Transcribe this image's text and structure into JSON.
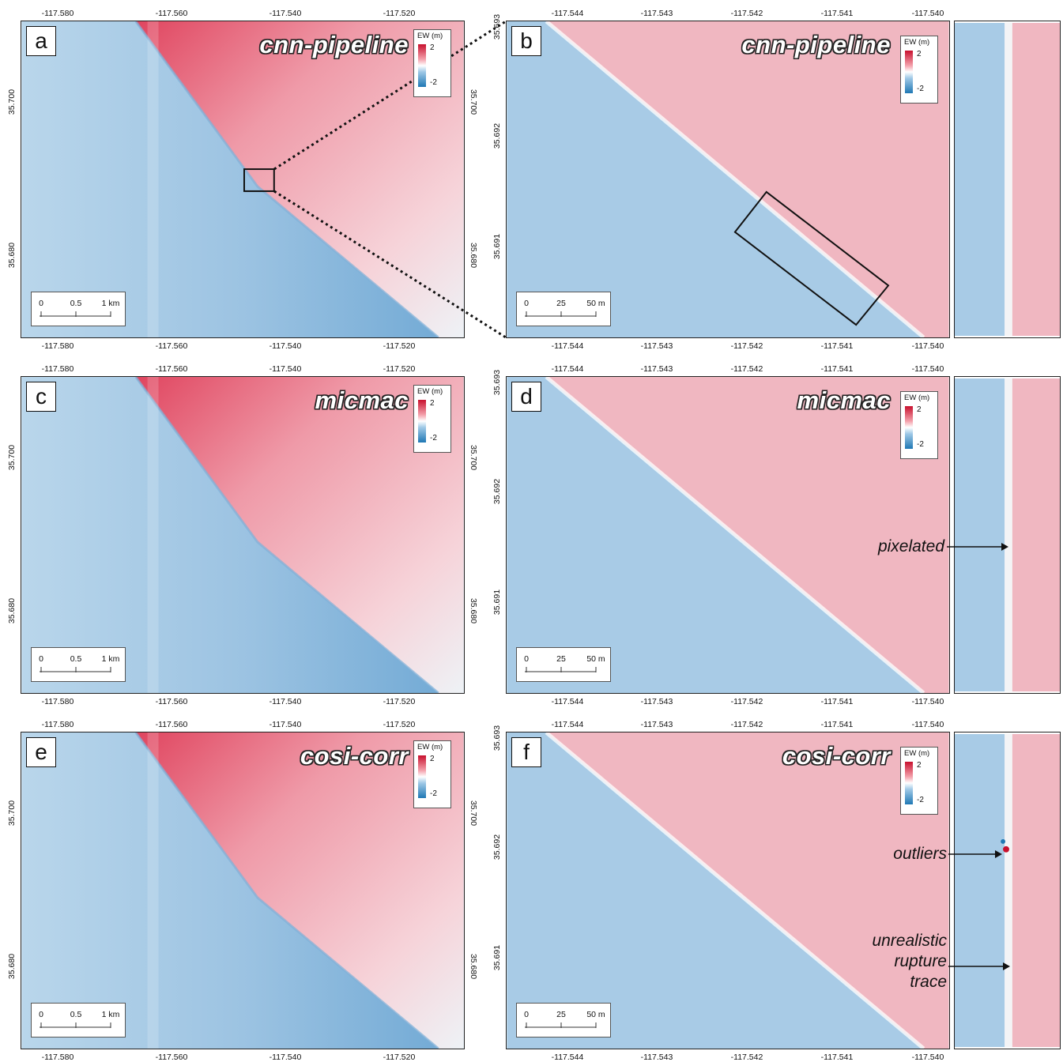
{
  "colorbar": {
    "title": "EW (m)",
    "max_label": "2",
    "min_label": "-2",
    "colors": {
      "positive": "#c8102e",
      "neutral": "#ffffff",
      "negative": "#1f78b4"
    }
  },
  "overview_axes": {
    "x_ticks": [
      "-117.580",
      "-117.560",
      "-117.540",
      "-117.520"
    ],
    "y_ticks": [
      "35.700",
      "35.680"
    ],
    "scale_labels": [
      "0",
      "0.5",
      "1 km"
    ]
  },
  "zoom_axes": {
    "x_ticks": [
      "-117.544",
      "-117.543",
      "-117.542",
      "-117.541",
      "-117.540"
    ],
    "y_ticks": [
      "35.693",
      "35.692",
      "35.691"
    ],
    "scale_labels": [
      "0",
      "25",
      "50 m"
    ]
  },
  "rows": [
    {
      "left_label": "a",
      "right_label": "b",
      "method": "cnn-pipeline"
    },
    {
      "left_label": "c",
      "right_label": "d",
      "method": "micmac"
    },
    {
      "left_label": "e",
      "right_label": "f",
      "method": "cosi-corr"
    }
  ],
  "annotations": {
    "row2": [
      "pixelated"
    ],
    "row3": [
      "outliers",
      "unrealistic",
      "rupture",
      "trace"
    ]
  }
}
